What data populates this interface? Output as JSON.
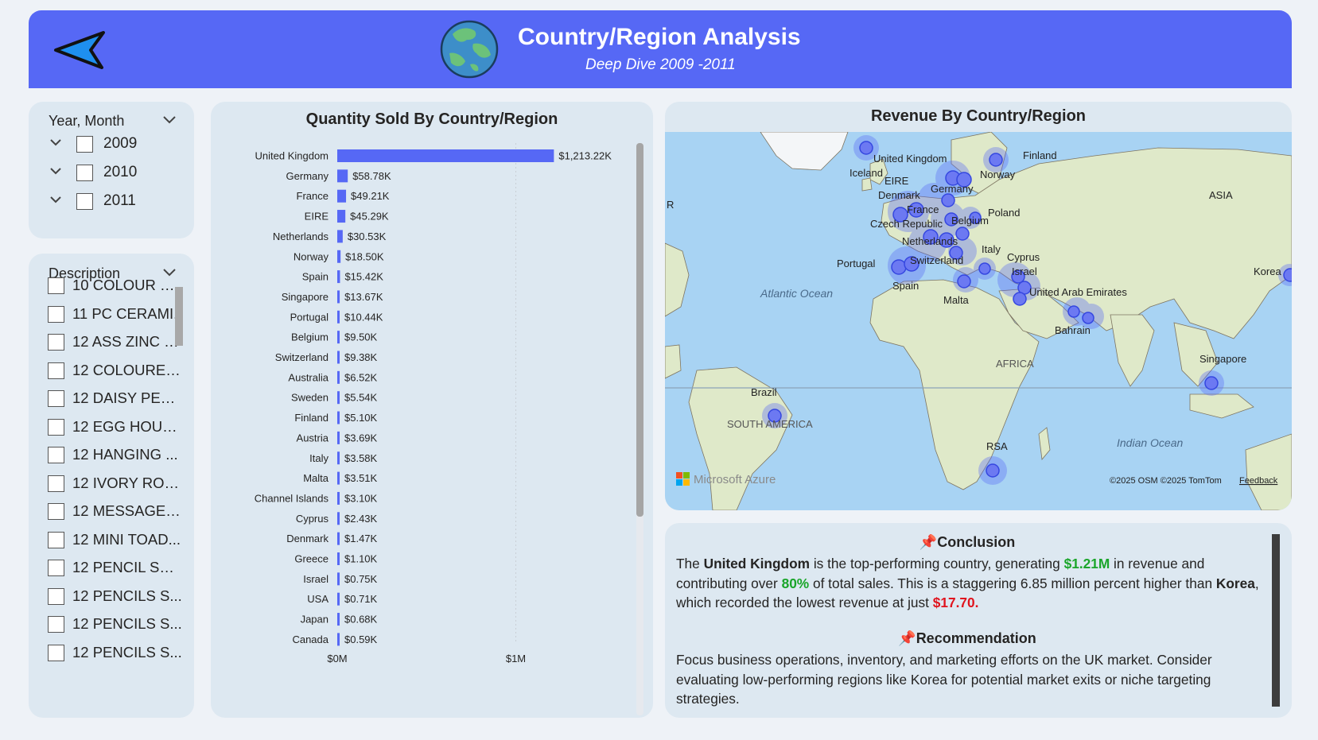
{
  "header": {
    "title": "Country/Region Analysis",
    "subtitle": "Deep Dive 2009 -2011",
    "brand_color": "#5668f5"
  },
  "year_slicer": {
    "label": "Year, Month",
    "items": [
      {
        "label": "2009",
        "checked": false
      },
      {
        "label": "2010",
        "checked": false
      },
      {
        "label": "2011",
        "checked": false
      }
    ]
  },
  "description_slicer": {
    "label": "Description",
    "items": [
      {
        "label": "10 COLOUR SP..",
        "checked": false
      },
      {
        "label": "11 PC CERAMI..",
        "checked": false
      },
      {
        "label": "12 ASS ZINC C...",
        "checked": false
      },
      {
        "label": "12 COLOURED...",
        "checked": false
      },
      {
        "label": "12 DAISY PEGS...",
        "checked": false
      },
      {
        "label": "12 EGG HOUS...",
        "checked": false
      },
      {
        "label": "12 HANGING ...",
        "checked": false
      },
      {
        "label": "12 IVORY ROS...",
        "checked": false
      },
      {
        "label": "12 MESSAGE C...",
        "checked": false
      },
      {
        "label": "12 MINI TOAD...",
        "checked": false
      },
      {
        "label": "12 PENCIL SM...",
        "checked": false
      },
      {
        "label": "12 PENCILS S...",
        "checked": false
      },
      {
        "label": "12 PENCILS S...",
        "checked": false
      },
      {
        "label": "12 PENCILS S...",
        "checked": false
      }
    ]
  },
  "chart_data": {
    "type": "bar",
    "orientation": "horizontal",
    "title": "Quantity Sold By Country/Region",
    "categories": [
      "United Kingdom",
      "Germany",
      "France",
      "EIRE",
      "Netherlands",
      "Norway",
      "Spain",
      "Singapore",
      "Portugal",
      "Belgium",
      "Switzerland",
      "Australia",
      "Sweden",
      "Finland",
      "Austria",
      "Italy",
      "Malta",
      "Channel Islands",
      "Cyprus",
      "Denmark",
      "Greece",
      "Israel",
      "USA",
      "Japan",
      "Canada"
    ],
    "values": [
      1213.22,
      58.78,
      49.21,
      45.29,
      30.53,
      18.5,
      15.42,
      13.67,
      10.44,
      9.5,
      9.38,
      6.52,
      5.54,
      5.1,
      3.69,
      3.58,
      3.51,
      3.1,
      2.43,
      1.47,
      1.1,
      0.75,
      0.71,
      0.68,
      0.59
    ],
    "value_unit": "K",
    "data_labels": [
      "$1,213.22K",
      "$58.78K",
      "$49.21K",
      "$45.29K",
      "$30.53K",
      "$18.50K",
      "$15.42K",
      "$13.67K",
      "$10.44K",
      "$9.50K",
      "$9.38K",
      "$6.52K",
      "$5.54K",
      "$5.10K",
      "$3.69K",
      "$3.58K",
      "$3.51K",
      "$3.10K",
      "$2.43K",
      "$1.47K",
      "$1.10K",
      "$0.75K",
      "$0.71K",
      "$0.68K",
      "$0.59K"
    ],
    "x_ticks": [
      "$0M",
      "$1M"
    ],
    "xlim": [
      0,
      1400
    ],
    "bar_color": "#5668f5",
    "grid": true
  },
  "map": {
    "title": "Revenue By Country/Region",
    "attribution": "©2025 OSM  ©2025 TomTom",
    "feedback_label": "Feedback",
    "logo_text": "Microsoft Azure",
    "labels": {
      "uk": "United Kingdom",
      "iceland": "Iceland",
      "eire": "EIRE",
      "finland": "Finland",
      "norway": "Norway",
      "germany": "Germany",
      "denmark": "Denmark",
      "france": "France",
      "belgium": "Belgium",
      "poland": "Poland",
      "czech": "Czech Republic",
      "netherlands": "Netherlands",
      "italy": "Italy",
      "cyprus": "Cyprus",
      "portugal": "Portugal",
      "switzerland": "Switzerland",
      "israel": "Israel",
      "asia": "ASIA",
      "korea": "Korea",
      "atlantic": "Atlantic Ocean",
      "spain": "Spain",
      "malta": "Malta",
      "uae": "United Arab Emirates",
      "bahrain": "Bahrain",
      "singapore": "Singapore",
      "africa": "AFRICA",
      "brazil": "Brazil",
      "south_america": "SOUTH AMERICA",
      "indian": "Indian Ocean",
      "rsa": "RSA",
      "eu_cut": "R"
    }
  },
  "conclusion": {
    "title": "Conclusion",
    "p1": "The ",
    "country": "United Kingdom",
    "p2": " is the top-performing country, generating ",
    "revenue": "$1.21M",
    "p3": " in revenue and contributing over ",
    "share": "80%",
    "p4": " of total sales. This is a staggering 6.85 million percent higher than ",
    "low_country": "Korea",
    "p5": ", which recorded the lowest revenue at just ",
    "low_value": "$17.70."
  },
  "recommendation": {
    "title": "Recommendation",
    "text": "Focus business operations, inventory, and marketing efforts on the UK market. Consider evaluating low-performing regions like Korea for potential market exits or niche targeting strategies."
  }
}
